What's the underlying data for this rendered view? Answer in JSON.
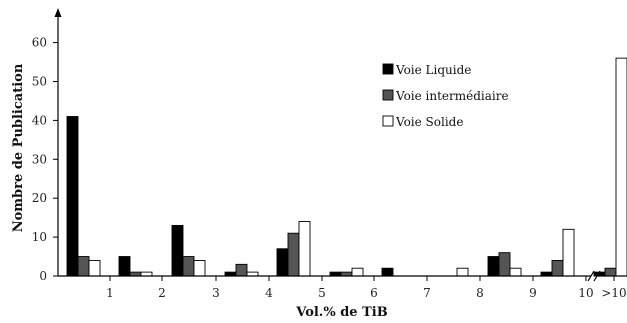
{
  "chart_data": {
    "type": "bar",
    "categories": [
      "0-1",
      "1-2",
      "2-3",
      "3-4",
      "4-5",
      "5-6",
      "6-7",
      "7-8",
      "8-9",
      "9-10",
      ">10"
    ],
    "x_tick_labels": [
      "1",
      "2",
      "3",
      "4",
      "5",
      "6",
      "7",
      "8",
      "9",
      "10",
      ">10"
    ],
    "series": [
      {
        "name": "Voie Liquide",
        "color": "#000000",
        "values": [
          41,
          5,
          13,
          1,
          7,
          1,
          2,
          0,
          5,
          1,
          1
        ]
      },
      {
        "name": "Voie intermédiaire",
        "color": "#555555",
        "values": [
          5,
          1,
          5,
          3,
          11,
          1,
          0,
          0,
          6,
          4,
          2
        ]
      },
      {
        "name": "Voie Solide",
        "color": "#ffffff",
        "values": [
          4,
          1,
          4,
          1,
          14,
          2,
          0,
          2,
          2,
          12,
          56
        ]
      }
    ],
    "xlabel": "Vol.% de TiB",
    "ylabel": "Nombre de Publication",
    "yticks": [
      0,
      10,
      20,
      30,
      40,
      50,
      60
    ],
    "ylim": [
      0,
      65
    ],
    "axis_break": "between 10 and >10",
    "legend_position": "top-right",
    "grid": false
  }
}
